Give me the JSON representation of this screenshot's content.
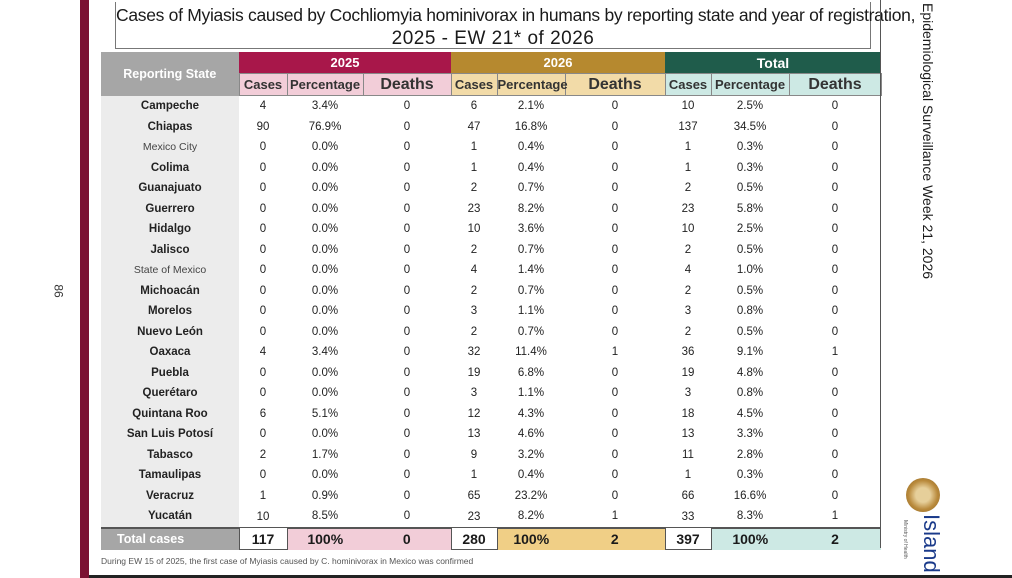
{
  "page_number": "86",
  "title": {
    "line1": "Cases of Myiasis caused by Cochliomyia hominivorax in humans by reporting state and year of registration,",
    "line2": "2025 - EW 21* of 2026"
  },
  "side_title": "Epidemiological Surveillance Week 21, 2026",
  "brand": {
    "name": "Island",
    "ministry": "Ministry of Health"
  },
  "footnote": "During EW 15 of 2025, the first case of Myiasis caused by C. hominivorax in Mexico was confirmed",
  "table": {
    "state_header": "Reporting State",
    "groups": [
      "2025",
      "2026",
      "Total"
    ],
    "subheaders": [
      "Cases",
      "Percentage",
      "Deaths"
    ],
    "rows": [
      {
        "state": "Campeche",
        "c25": "4",
        "p25": "3.4%",
        "d25": "0",
        "c26": "6",
        "p26": "2.1%",
        "d26": "0",
        "ct": "10",
        "pt": "2.5%",
        "dt": "0"
      },
      {
        "state": "Chiapas",
        "c25": "90",
        "p25": "76.9%",
        "d25": "0",
        "c26": "47",
        "p26": "16.8%",
        "d26": "0",
        "ct": "137",
        "pt": "34.5%",
        "dt": "0"
      },
      {
        "state": "Mexico City",
        "light": true,
        "c25": "0",
        "p25": "0.0%",
        "d25": "0",
        "c26": "1",
        "p26": "0.4%",
        "d26": "0",
        "ct": "1",
        "pt": "0.3%",
        "dt": "0"
      },
      {
        "state": "Colima",
        "c25": "0",
        "p25": "0.0%",
        "d25": "0",
        "c26": "1",
        "p26": "0.4%",
        "d26": "0",
        "ct": "1",
        "pt": "0.3%",
        "dt": "0"
      },
      {
        "state": "Guanajuato",
        "c25": "0",
        "p25": "0.0%",
        "d25": "0",
        "c26": "2",
        "p26": "0.7%",
        "d26": "0",
        "ct": "2",
        "pt": "0.5%",
        "dt": "0"
      },
      {
        "state": "Guerrero",
        "c25": "0",
        "p25": "0.0%",
        "d25": "0",
        "c26": "23",
        "p26": "8.2%",
        "d26": "0",
        "ct": "23",
        "pt": "5.8%",
        "dt": "0"
      },
      {
        "state": "Hidalgo",
        "c25": "0",
        "p25": "0.0%",
        "d25": "0",
        "c26": "10",
        "p26": "3.6%",
        "d26": "0",
        "ct": "10",
        "pt": "2.5%",
        "dt": "0"
      },
      {
        "state": "Jalisco",
        "c25": "0",
        "p25": "0.0%",
        "d25": "0",
        "c26": "2",
        "p26": "0.7%",
        "d26": "0",
        "ct": "2",
        "pt": "0.5%",
        "dt": "0"
      },
      {
        "state": "State of Mexico",
        "light": true,
        "c25": "0",
        "p25": "0.0%",
        "d25": "0",
        "c26": "4",
        "p26": "1.4%",
        "d26": "0",
        "ct": "4",
        "pt": "1.0%",
        "dt": "0"
      },
      {
        "state": "Michoacán",
        "c25": "0",
        "p25": "0.0%",
        "d25": "0",
        "c26": "2",
        "p26": "0.7%",
        "d26": "0",
        "ct": "2",
        "pt": "0.5%",
        "dt": "0"
      },
      {
        "state": "Morelos",
        "c25": "0",
        "p25": "0.0%",
        "d25": "0",
        "c26": "3",
        "p26": "1.1%",
        "d26": "0",
        "ct": "3",
        "pt": "0.8%",
        "dt": "0"
      },
      {
        "state": "Nuevo León",
        "c25": "0",
        "p25": "0.0%",
        "d25": "0",
        "c26": "2",
        "p26": "0.7%",
        "d26": "0",
        "ct": "2",
        "pt": "0.5%",
        "dt": "0"
      },
      {
        "state": "Oaxaca",
        "c25": "4",
        "p25": "3.4%",
        "d25": "0",
        "c26": "32",
        "p26": "11.4%",
        "d26": "1",
        "ct": "36",
        "pt": "9.1%",
        "dt": "1"
      },
      {
        "state": "Puebla",
        "c25": "0",
        "p25": "0.0%",
        "d25": "0",
        "c26": "19",
        "p26": "6.8%",
        "d26": "0",
        "ct": "19",
        "pt": "4.8%",
        "dt": "0"
      },
      {
        "state": "Querétaro",
        "c25": "0",
        "p25": "0.0%",
        "d25": "0",
        "c26": "3",
        "p26": "1.1%",
        "d26": "0",
        "ct": "3",
        "pt": "0.8%",
        "dt": "0"
      },
      {
        "state": "Quintana Roo",
        "c25": "6",
        "p25": "5.1%",
        "d25": "0",
        "c26": "12",
        "p26": "4.3%",
        "d26": "0",
        "ct": "18",
        "pt": "4.5%",
        "dt": "0"
      },
      {
        "state": "San Luis Potosí",
        "c25": "0",
        "p25": "0.0%",
        "d25": "0",
        "c26": "13",
        "p26": "4.6%",
        "d26": "0",
        "ct": "13",
        "pt": "3.3%",
        "dt": "0"
      },
      {
        "state": "Tabasco",
        "c25": "2",
        "p25": "1.7%",
        "d25": "0",
        "c26": "9",
        "p26": "3.2%",
        "d26": "0",
        "ct": "11",
        "pt": "2.8%",
        "dt": "0"
      },
      {
        "state": "Tamaulipas",
        "c25": "0",
        "p25": "0.0%",
        "d25": "0",
        "c26": "1",
        "p26": "0.4%",
        "d26": "0",
        "ct": "1",
        "pt": "0.3%",
        "dt": "0"
      },
      {
        "state": "Veracruz",
        "c25": "1",
        "p25": "0.9%",
        "d25": "0",
        "c26": "65",
        "p26": "23.2%",
        "d26": "0",
        "ct": "66",
        "pt": "16.6%",
        "dt": "0"
      },
      {
        "state": "Yucatán",
        "c25": "10",
        "p25": "8.5%",
        "d25": "0",
        "c26": "23",
        "p26": "8.2%",
        "d26": "1",
        "ct": "33",
        "pt": "8.3%",
        "dt": "1"
      }
    ],
    "total": {
      "label": "Total cases",
      "c25": "117",
      "p25": "100%",
      "d25": "0",
      "c26": "280",
      "p26": "100%",
      "d26": "2",
      "ct": "397",
      "pt": "100%",
      "dt": "2"
    }
  },
  "colors": {
    "accent_2025": "#a8174a",
    "accent_2026": "#b6892f",
    "accent_total": "#1f5c4b",
    "side_bar": "#7b1132"
  }
}
